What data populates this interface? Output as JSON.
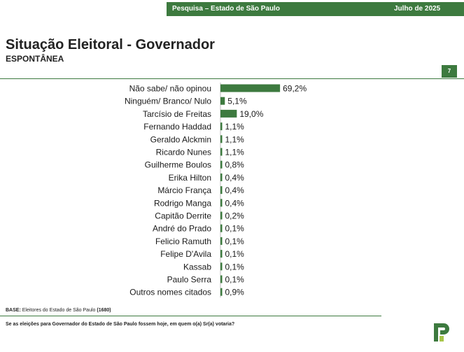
{
  "header": {
    "survey": "Pesquisa – Estado de São Paulo",
    "date": "Julho de 2025"
  },
  "title": "Situação Eleitoral - Governador",
  "subtitle": "ESPONTÂNEA",
  "page_number": "7",
  "footer": {
    "base_label": "BASE:",
    "base_text": "Eleitores do Estado de São Paulo",
    "base_n": "(1680)",
    "question": "Se as eleições para Governador do Estado de São Paulo fossem hoje, em quem o(a) Sr(a) votaria?"
  },
  "colors": {
    "accent": "#3d7a3f",
    "bar": "#3d7a3f"
  },
  "chart_data": {
    "type": "bar",
    "orientation": "horizontal",
    "categories": [
      "Não sabe/ não opinou",
      "Ninguém/ Branco/ Nulo",
      "Tarcísio de Freitas",
      "Fernando Haddad",
      "Geraldo Alckmin",
      "Ricardo Nunes",
      "Guilherme Boulos",
      "Erika Hilton",
      "Márcio França",
      "Rodrigo Manga",
      "Capitão Derrite",
      "André do Prado",
      "Felicio Ramuth",
      "Felipe D'Avila",
      "Kassab",
      "Paulo Serra",
      "Outros nomes citados"
    ],
    "values": [
      69.2,
      5.1,
      19.0,
      1.1,
      1.1,
      1.1,
      0.8,
      0.4,
      0.4,
      0.4,
      0.2,
      0.1,
      0.1,
      0.1,
      0.1,
      0.1,
      0.9
    ],
    "labels": [
      "69,2%",
      "5,1%",
      "19,0%",
      "1,1%",
      "1,1%",
      "1,1%",
      "0,8%",
      "0,4%",
      "0,4%",
      "0,4%",
      "0,2%",
      "0,1%",
      "0,1%",
      "0,1%",
      "0,1%",
      "0,1%",
      "0,9%"
    ]
  }
}
